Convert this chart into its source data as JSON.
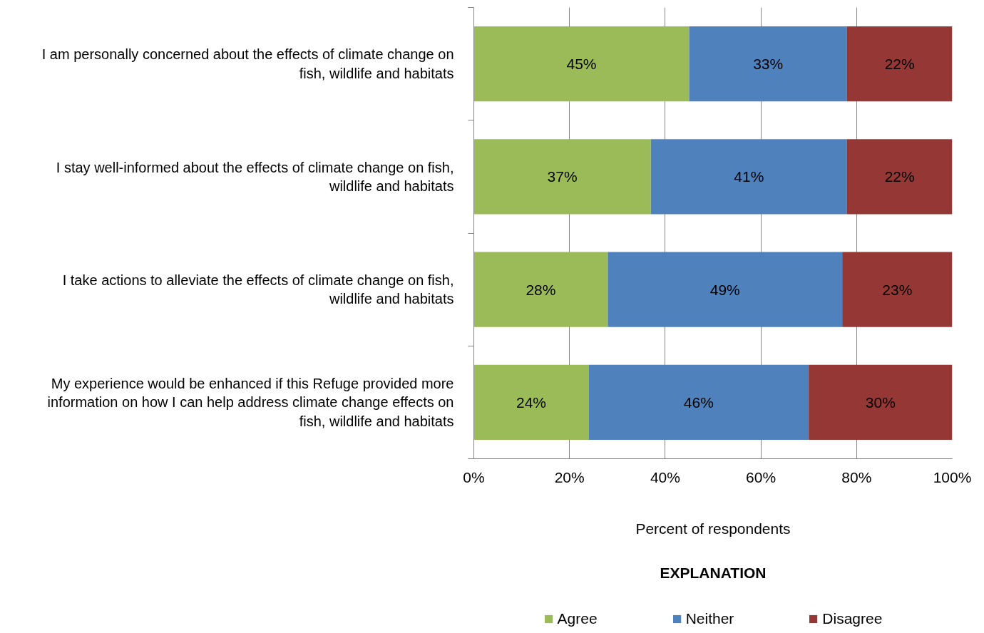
{
  "chart_data": {
    "type": "bar",
    "orientation": "horizontal",
    "stacked": true,
    "categories": [
      "I am personally concerned about the effects of climate change on fish, wildlife and habitats",
      "I stay well-informed about the effects of climate change on fish, wildlife and habitats",
      "I take actions to alleviate the effects of climate change on fish, wildlife and habitats",
      "My experience would be enhanced if this Refuge provided more information on how I can help address climate change effects on fish, wildlife and habitats"
    ],
    "series": [
      {
        "name": "Agree",
        "color": "#9bbb59",
        "values": [
          45,
          37,
          28,
          24
        ],
        "value_labels": [
          "45%",
          "37%",
          "28%",
          "24%"
        ]
      },
      {
        "name": "Neither",
        "color": "#4f81bd",
        "values": [
          33,
          41,
          49,
          46
        ],
        "value_labels": [
          "33%",
          "41%",
          "49%",
          "46%"
        ]
      },
      {
        "name": "Disagree",
        "color": "#953735",
        "values": [
          22,
          22,
          23,
          30
        ],
        "value_labels": [
          "22%",
          "22%",
          "23%",
          "30%"
        ]
      }
    ],
    "xlim": [
      0,
      100
    ],
    "xticks": [
      {
        "value": 0,
        "label": "0%"
      },
      {
        "value": 20,
        "label": "20%"
      },
      {
        "value": 40,
        "label": "40%"
      },
      {
        "value": 60,
        "label": "60%"
      },
      {
        "value": 80,
        "label": "80%"
      },
      {
        "value": 100,
        "label": "100%"
      }
    ],
    "xlabel": "Percent of respondents",
    "legend_title": "EXPLANATION",
    "legend": "bottom",
    "grid": "x"
  }
}
